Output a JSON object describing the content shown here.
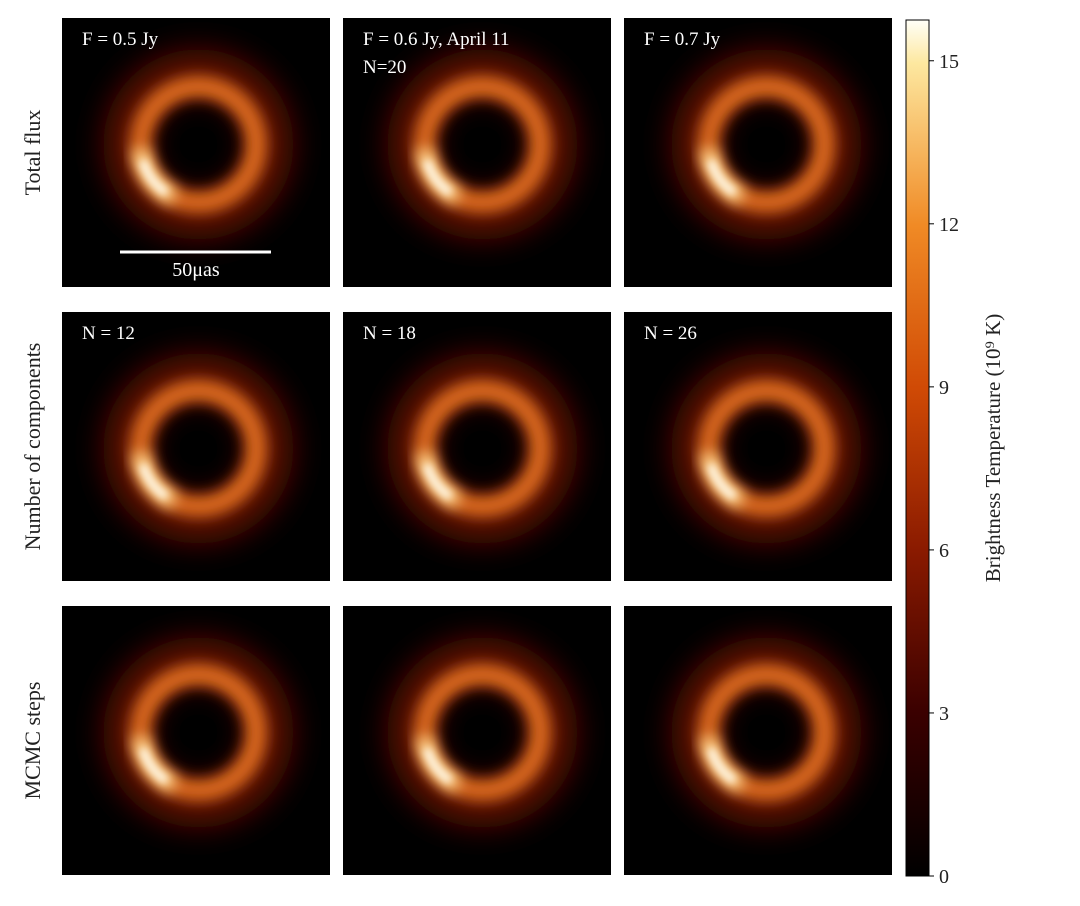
{
  "chart_data": {
    "type": "image",
    "row_labels": [
      "Total flux",
      "Number of components",
      "MCMC steps"
    ],
    "panel_labels": [
      [
        "F = 0.5 Jy"
      ],
      [
        "F = 0.6 Jy, April 11",
        "N=20"
      ],
      [
        "F = 0.7 Jy"
      ],
      [
        "N = 12"
      ],
      [
        "N = 18"
      ],
      [
        "N = 26"
      ],
      [],
      [],
      []
    ],
    "scale_bar": "50μas",
    "colorbar_label": "Brightness Temperature (10⁹ K)",
    "ylim": [
      0,
      15.75
    ],
    "yticks": [
      0,
      3,
      6,
      9,
      12,
      15
    ]
  }
}
